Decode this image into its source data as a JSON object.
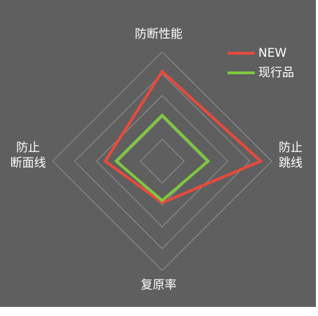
{
  "chart_data": {
    "type": "radar",
    "axes": [
      "防断性能",
      "防止跳线",
      "复原率",
      "防止断面线"
    ],
    "axis_labels": {
      "top": "防断性能",
      "right": "防止\n跳线",
      "bottom": "复原率",
      "left": "防止\n断面线"
    },
    "grid": true,
    "grid_levels": 5,
    "range": [
      0,
      5
    ],
    "legend_position": "top-right",
    "series": [
      {
        "name": "NEW",
        "color": "#e84a3c",
        "values": [
          4.1,
          4.5,
          1.9,
          2.6
        ]
      },
      {
        "name": "现行品",
        "color": "#7ec83f",
        "values": [
          2.1,
          2.1,
          1.8,
          2.1
        ]
      }
    ]
  }
}
